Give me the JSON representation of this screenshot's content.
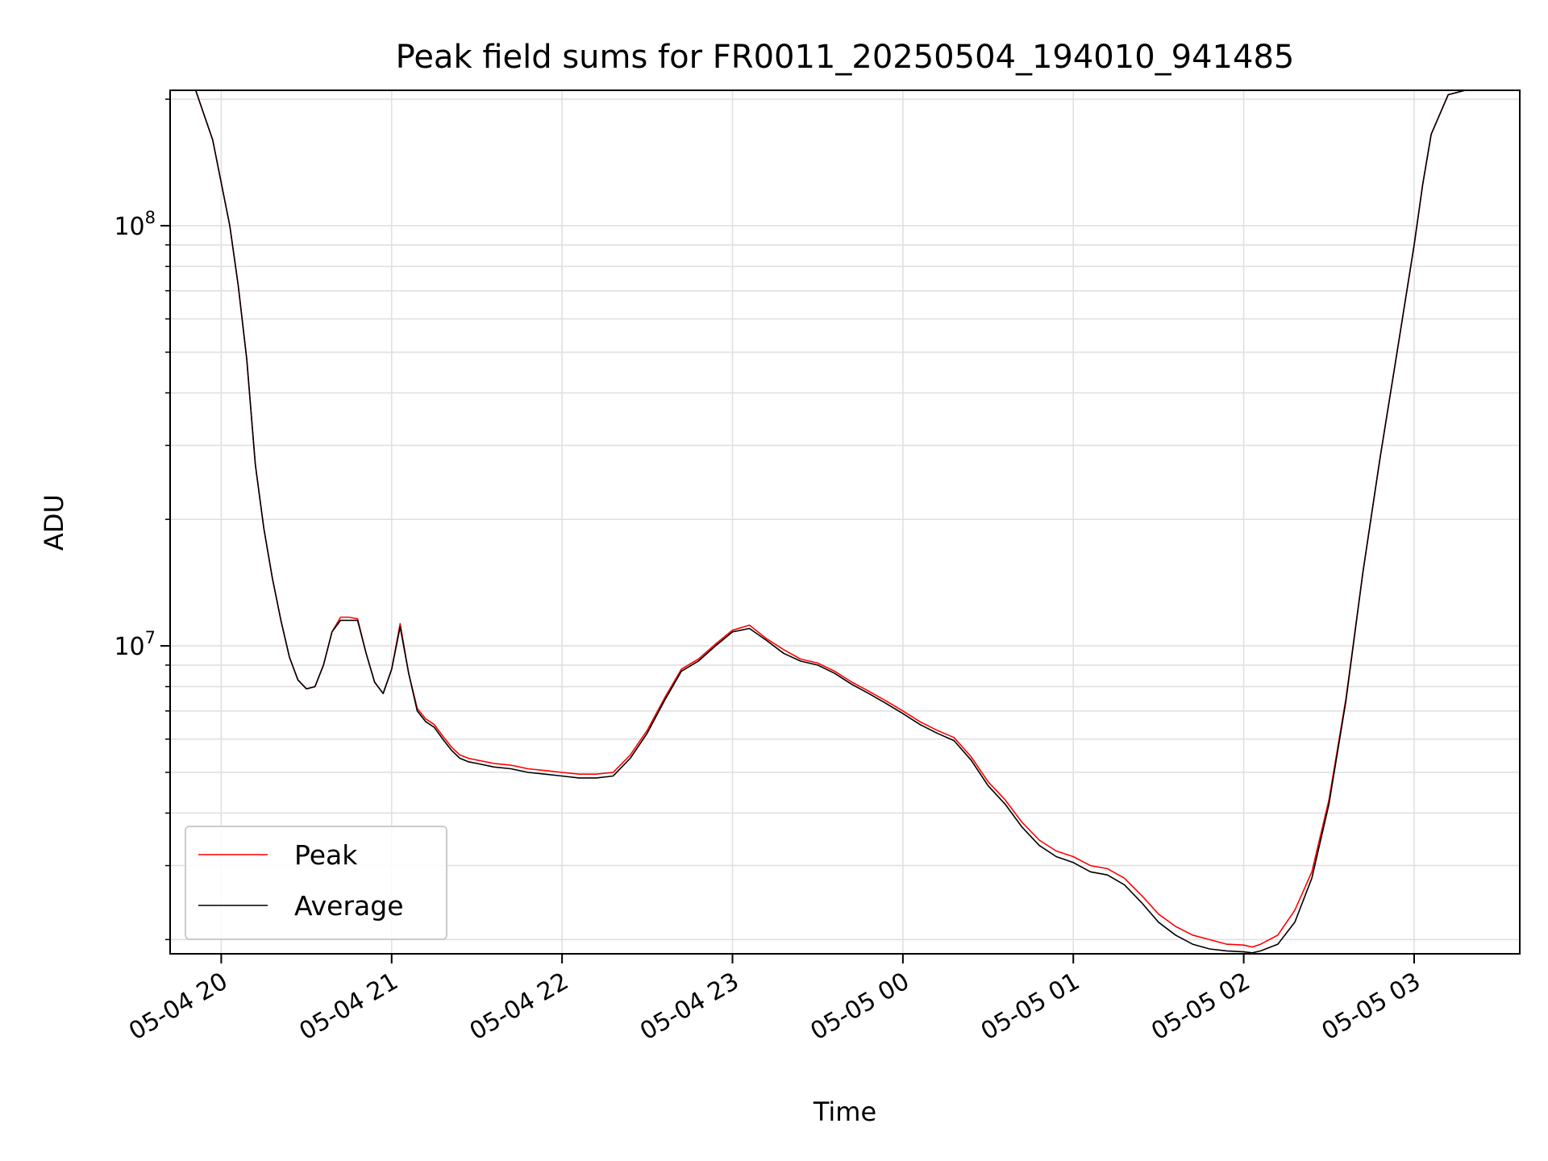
{
  "chart_data": {
    "type": "line",
    "title": "Peak field sums for FR0011_20250504_194010_941485",
    "xlabel": "Time",
    "ylabel": "ADU",
    "yscale": "log",
    "ylim": [
      1850000,
      210000000
    ],
    "xlim": [
      19.7,
      27.62
    ],
    "x_unit": "hours since 2025-05-04 00:00",
    "grid": true,
    "legend_placement": "lower-left",
    "x_ticks": [
      {
        "value": 20,
        "label": "05-04 20"
      },
      {
        "value": 21,
        "label": "05-04 21"
      },
      {
        "value": 22,
        "label": "05-04 22"
      },
      {
        "value": 23,
        "label": "05-04 23"
      },
      {
        "value": 24,
        "label": "05-05 00"
      },
      {
        "value": 25,
        "label": "05-05 01"
      },
      {
        "value": 26,
        "label": "05-05 02"
      },
      {
        "value": 27,
        "label": "05-05 03"
      }
    ],
    "y_major_ticks": [
      {
        "value": 10000000,
        "base": "10",
        "exp": "7"
      },
      {
        "value": 100000000,
        "base": "10",
        "exp": "8"
      }
    ],
    "y_minor_ticks": [
      2000000,
      3000000,
      4000000,
      5000000,
      6000000,
      7000000,
      8000000,
      9000000,
      20000000,
      30000000,
      40000000,
      50000000,
      60000000,
      70000000,
      80000000,
      90000000,
      200000000
    ],
    "series": [
      {
        "name": "Peak",
        "color": "#ff0000",
        "x": [
          19.85,
          19.95,
          20.05,
          20.1,
          20.15,
          20.2,
          20.25,
          20.3,
          20.35,
          20.4,
          20.45,
          20.5,
          20.55,
          20.6,
          20.65,
          20.7,
          20.75,
          20.8,
          20.85,
          20.9,
          20.95,
          21.0,
          21.05,
          21.1,
          21.15,
          21.2,
          21.25,
          21.3,
          21.35,
          21.4,
          21.45,
          21.5,
          21.6,
          21.7,
          21.8,
          21.9,
          22.0,
          22.1,
          22.2,
          22.3,
          22.4,
          22.5,
          22.6,
          22.7,
          22.8,
          22.9,
          23.0,
          23.1,
          23.2,
          23.3,
          23.4,
          23.5,
          23.6,
          23.7,
          23.8,
          23.9,
          24.0,
          24.1,
          24.2,
          24.3,
          24.4,
          24.5,
          24.6,
          24.7,
          24.8,
          24.9,
          25.0,
          25.1,
          25.2,
          25.3,
          25.4,
          25.5,
          25.6,
          25.7,
          25.8,
          25.9,
          26.0,
          26.05,
          26.1,
          26.2,
          26.3,
          26.4,
          26.5,
          26.6,
          26.7,
          26.8,
          26.9,
          27.0,
          27.05,
          27.1,
          27.2,
          27.3,
          27.35,
          27.4
        ],
        "y": [
          210000000,
          160000000,
          100000000,
          72000000,
          48000000,
          27000000,
          19000000,
          14500000,
          11500000,
          9400000,
          8300000,
          7900000,
          8000000,
          9000000,
          10800000,
          11700000,
          11700000,
          11600000,
          9600000,
          8200000,
          7700000,
          8800000,
          11300000,
          8600000,
          7100000,
          6700000,
          6500000,
          6100000,
          5750000,
          5500000,
          5400000,
          5350000,
          5250000,
          5200000,
          5100000,
          5050000,
          5000000,
          4950000,
          4950000,
          5000000,
          5500000,
          6300000,
          7500000,
          8800000,
          9300000,
          10100000,
          10900000,
          11200000,
          10400000,
          9800000,
          9300000,
          9100000,
          8700000,
          8200000,
          7800000,
          7400000,
          7000000,
          6600000,
          6300000,
          6050000,
          5450000,
          4750000,
          4300000,
          3800000,
          3450000,
          3250000,
          3150000,
          3000000,
          2950000,
          2800000,
          2550000,
          2300000,
          2150000,
          2050000,
          2000000,
          1950000,
          1940000,
          1920000,
          1950000,
          2050000,
          2350000,
          2900000,
          4300000,
          7500000,
          15000000,
          28000000,
          50000000,
          90000000,
          125000000,
          165000000,
          205000000,
          210000000,
          210000000,
          210000000
        ]
      },
      {
        "name": "Average",
        "color": "#000000",
        "x": [
          19.85,
          19.95,
          20.05,
          20.1,
          20.15,
          20.2,
          20.25,
          20.3,
          20.35,
          20.4,
          20.45,
          20.5,
          20.55,
          20.6,
          20.65,
          20.7,
          20.75,
          20.8,
          20.85,
          20.9,
          20.95,
          21.0,
          21.05,
          21.1,
          21.15,
          21.2,
          21.25,
          21.3,
          21.35,
          21.4,
          21.45,
          21.5,
          21.6,
          21.7,
          21.8,
          21.9,
          22.0,
          22.1,
          22.2,
          22.3,
          22.4,
          22.5,
          22.6,
          22.7,
          22.8,
          22.9,
          23.0,
          23.1,
          23.2,
          23.3,
          23.4,
          23.5,
          23.6,
          23.7,
          23.8,
          23.9,
          24.0,
          24.1,
          24.2,
          24.3,
          24.4,
          24.5,
          24.6,
          24.7,
          24.8,
          24.9,
          25.0,
          25.1,
          25.2,
          25.3,
          25.4,
          25.5,
          25.6,
          25.7,
          25.8,
          25.9,
          26.0,
          26.05,
          26.1,
          26.2,
          26.3,
          26.4,
          26.5,
          26.6,
          26.7,
          26.8,
          26.9,
          27.0,
          27.05,
          27.1,
          27.2,
          27.3,
          27.35,
          27.4
        ],
        "y": [
          210000000,
          160000000,
          100000000,
          72000000,
          48000000,
          27000000,
          19000000,
          14500000,
          11500000,
          9400000,
          8300000,
          7900000,
          8000000,
          9000000,
          10800000,
          11500000,
          11500000,
          11500000,
          9600000,
          8200000,
          7700000,
          8800000,
          11100000,
          8600000,
          7000000,
          6600000,
          6400000,
          6000000,
          5650000,
          5400000,
          5300000,
          5250000,
          5150000,
          5100000,
          5000000,
          4950000,
          4900000,
          4850000,
          4850000,
          4900000,
          5400000,
          6200000,
          7400000,
          8700000,
          9200000,
          10000000,
          10800000,
          11000000,
          10300000,
          9600000,
          9200000,
          9000000,
          8600000,
          8100000,
          7700000,
          7300000,
          6900000,
          6500000,
          6200000,
          5950000,
          5350000,
          4650000,
          4200000,
          3700000,
          3350000,
          3150000,
          3050000,
          2900000,
          2850000,
          2700000,
          2450000,
          2200000,
          2050000,
          1950000,
          1900000,
          1880000,
          1870000,
          1860000,
          1880000,
          1950000,
          2200000,
          2800000,
          4200000,
          7400000,
          15000000,
          28000000,
          50000000,
          90000000,
          125000000,
          165000000,
          205000000,
          210000000,
          210000000,
          210000000
        ]
      }
    ]
  }
}
